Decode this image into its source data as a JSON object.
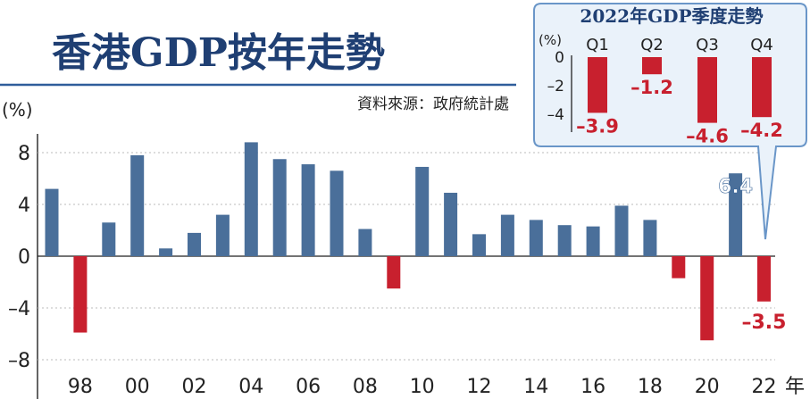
{
  "title": "香港GDP按年走勢",
  "source": "資料來源：政府統計處",
  "colors": {
    "positive": "#4a6f9a",
    "negative": "#c8202e",
    "title": "#1f3f73",
    "inset_bg": "#eaf2fa",
    "inset_border": "#6a96c8"
  },
  "chart_data": [
    {
      "type": "bar",
      "ylabel": "(%)",
      "xlabel_unit": "年",
      "ylim": [
        -8,
        10
      ],
      "yticks": [
        8,
        4,
        0,
        -4,
        -8
      ],
      "ytick_labels": [
        "8",
        "4",
        "0",
        "–4",
        "–8"
      ],
      "xtick_labels": [
        "98",
        "00",
        "02",
        "04",
        "06",
        "08",
        "10",
        "12",
        "14",
        "16",
        "18",
        "20",
        "22"
      ],
      "categories": [
        "1997",
        "1998",
        "1999",
        "2000",
        "2001",
        "2002",
        "2003",
        "2004",
        "2005",
        "2006",
        "2007",
        "2008",
        "2009",
        "2010",
        "2011",
        "2012",
        "2013",
        "2014",
        "2015",
        "2016",
        "2017",
        "2018",
        "2019",
        "2020",
        "2021",
        "2022"
      ],
      "values": [
        5.2,
        -5.9,
        2.6,
        7.8,
        0.6,
        1.8,
        3.2,
        8.8,
        7.5,
        7.1,
        6.6,
        2.1,
        -2.5,
        6.9,
        4.9,
        1.7,
        3.2,
        2.8,
        2.4,
        2.3,
        3.9,
        2.8,
        -1.7,
        -6.5,
        6.4,
        -3.5
      ],
      "data_labels": [
        {
          "category": "2021",
          "text": "6.4"
        },
        {
          "category": "2022",
          "text": "–3.5"
        }
      ]
    },
    {
      "type": "bar",
      "title": "2022年GDP季度走勢",
      "ylabel": "(%)",
      "ylim": [
        -4.8,
        0
      ],
      "yticks": [
        0,
        -2,
        -4
      ],
      "ytick_labels": [
        "0",
        "–2",
        "–4"
      ],
      "categories": [
        "Q1",
        "Q2",
        "Q3",
        "Q4"
      ],
      "values": [
        -3.9,
        -1.2,
        -4.6,
        -4.2
      ],
      "data_labels": [
        "–3.9",
        "–1.2",
        "–4.6",
        "–4.2"
      ]
    }
  ]
}
